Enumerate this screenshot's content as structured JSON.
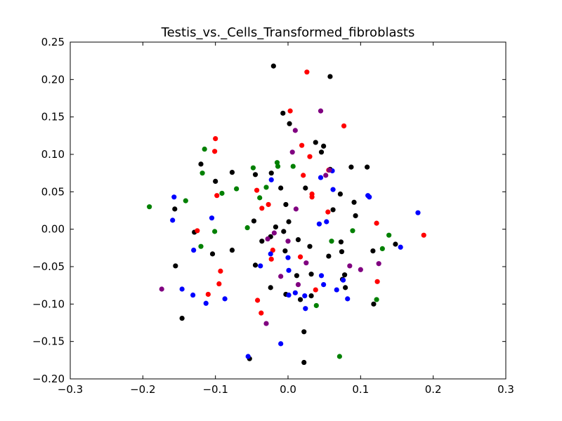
{
  "chart_data": {
    "type": "scatter",
    "title": "Testis_vs._Cells_Transformed_fibroblasts",
    "xlabel": "",
    "ylabel": "",
    "xlim": [
      -0.3,
      0.3
    ],
    "ylim": [
      -0.2,
      0.25
    ],
    "xticks": [
      -0.3,
      -0.2,
      -0.1,
      0.0,
      0.1,
      0.2,
      0.3
    ],
    "xtick_labels": [
      "−0.3",
      "−0.2",
      "−0.1",
      "0.0",
      "0.1",
      "0.2",
      "0.3"
    ],
    "yticks": [
      -0.2,
      -0.15,
      -0.1,
      -0.05,
      0.0,
      0.05,
      0.1,
      0.15,
      0.2,
      0.25
    ],
    "ytick_labels": [
      "−0.20",
      "−0.15",
      "−0.10",
      "−0.05",
      "0.00",
      "0.05",
      "0.10",
      "0.15",
      "0.20",
      "0.25"
    ],
    "grid": false,
    "legend": "none",
    "series": [
      {
        "color": "#000000",
        "points": [
          [
            -0.02,
            0.218
          ],
          [
            0.058,
            0.204
          ],
          [
            -0.007,
            0.155
          ],
          [
            0.002,
            0.141
          ],
          [
            0.038,
            0.116
          ],
          [
            0.049,
            0.111
          ],
          [
            0.046,
            0.103
          ],
          [
            -0.12,
            0.087
          ],
          [
            0.109,
            0.083
          ],
          [
            0.087,
            0.083
          ],
          [
            0.058,
            0.08
          ],
          [
            -0.077,
            0.076
          ],
          [
            -0.023,
            0.075
          ],
          [
            -0.045,
            0.073
          ],
          [
            -0.1,
            0.064
          ],
          [
            0.024,
            0.055
          ],
          [
            -0.01,
            0.055
          ],
          [
            0.072,
            0.047
          ],
          [
            0.091,
            0.036
          ],
          [
            -0.156,
            0.027
          ],
          [
            0.062,
            0.026
          ],
          [
            -0.003,
            0.033
          ],
          [
            0.093,
            0.018
          ],
          [
            -0.047,
            0.011
          ],
          [
            0.001,
            0.01
          ],
          [
            -0.129,
            -0.004
          ],
          [
            -0.017,
            0.003
          ],
          [
            -0.006,
            -0.003
          ],
          [
            -0.024,
            -0.01
          ],
          [
            0.014,
            -0.014
          ],
          [
            -0.036,
            -0.016
          ],
          [
            0.03,
            -0.023
          ],
          [
            0.073,
            -0.017
          ],
          [
            -0.077,
            -0.028
          ],
          [
            0.117,
            -0.029
          ],
          [
            -0.004,
            -0.029
          ],
          [
            -0.104,
            -0.033
          ],
          [
            0.074,
            -0.03
          ],
          [
            0.056,
            -0.036
          ],
          [
            -0.155,
            -0.049
          ],
          [
            -0.045,
            -0.048
          ],
          [
            0.032,
            -0.06
          ],
          [
            0.012,
            -0.062
          ],
          [
            0.078,
            -0.061
          ],
          [
            0.075,
            -0.067
          ],
          [
            -0.024,
            -0.078
          ],
          [
            0.079,
            -0.078
          ],
          [
            0.148,
            -0.02
          ],
          [
            0.118,
            -0.1
          ],
          [
            -0.003,
            -0.087
          ],
          [
            0.032,
            -0.089
          ],
          [
            0.017,
            -0.094
          ],
          [
            -0.146,
            -0.119
          ],
          [
            0.022,
            -0.137
          ],
          [
            -0.053,
            -0.173
          ],
          [
            0.022,
            -0.178
          ]
        ]
      },
      {
        "color": "#ff0000",
        "points": [
          [
            0.026,
            0.21
          ],
          [
            0.003,
            0.158
          ],
          [
            0.077,
            0.138
          ],
          [
            -0.1,
            0.121
          ],
          [
            0.019,
            0.112
          ],
          [
            -0.101,
            0.104
          ],
          [
            0.03,
            0.097
          ],
          [
            0.056,
            0.079
          ],
          [
            0.021,
            0.072
          ],
          [
            -0.043,
            0.052
          ],
          [
            0.033,
            0.047
          ],
          [
            -0.098,
            0.045
          ],
          [
            0.033,
            0.043
          ],
          [
            -0.027,
            0.033
          ],
          [
            -0.036,
            0.028
          ],
          [
            0.055,
            0.023
          ],
          [
            0.122,
            0.008
          ],
          [
            -0.125,
            -0.002
          ],
          [
            0.187,
            -0.008
          ],
          [
            -0.021,
            -0.028
          ],
          [
            0.017,
            -0.037
          ],
          [
            -0.023,
            -0.04
          ],
          [
            -0.093,
            -0.056
          ],
          [
            0.038,
            -0.081
          ],
          [
            -0.095,
            -0.073
          ],
          [
            0.123,
            -0.07
          ],
          [
            -0.11,
            -0.087
          ],
          [
            -0.042,
            -0.095
          ],
          [
            -0.037,
            -0.112
          ]
        ]
      },
      {
        "color": "#0000ff",
        "points": [
          [
            0.061,
            0.078
          ],
          [
            0.045,
            0.069
          ],
          [
            -0.023,
            0.066
          ],
          [
            0.062,
            0.053
          ],
          [
            -0.157,
            0.043
          ],
          [
            0.11,
            0.045
          ],
          [
            0.112,
            0.043
          ],
          [
            0.179,
            0.022
          ],
          [
            -0.105,
            0.015
          ],
          [
            -0.159,
            0.012
          ],
          [
            0.053,
            0.01
          ],
          [
            0.043,
            0.007
          ],
          [
            -0.13,
            -0.028
          ],
          [
            0.155,
            -0.024
          ],
          [
            -0.024,
            -0.033
          ],
          [
            0.0,
            -0.038
          ],
          [
            -0.038,
            -0.049
          ],
          [
            0.001,
            -0.055
          ],
          [
            0.046,
            -0.062
          ],
          [
            0.049,
            -0.074
          ],
          [
            0.076,
            -0.068
          ],
          [
            0.067,
            -0.081
          ],
          [
            -0.146,
            -0.08
          ],
          [
            0.01,
            -0.085
          ],
          [
            0.001,
            -0.088
          ],
          [
            0.023,
            -0.089
          ],
          [
            0.082,
            -0.093
          ],
          [
            -0.131,
            -0.088
          ],
          [
            -0.087,
            -0.093
          ],
          [
            -0.113,
            -0.099
          ],
          [
            0.024,
            -0.106
          ],
          [
            -0.01,
            -0.153
          ],
          [
            -0.055,
            -0.17
          ]
        ]
      },
      {
        "color": "#008000",
        "points": [
          [
            -0.115,
            0.107
          ],
          [
            -0.015,
            0.089
          ],
          [
            0.007,
            0.084
          ],
          [
            -0.048,
            0.082
          ],
          [
            -0.014,
            0.084
          ],
          [
            -0.118,
            0.075
          ],
          [
            -0.091,
            0.048
          ],
          [
            -0.071,
            0.054
          ],
          [
            -0.03,
            0.056
          ],
          [
            -0.039,
            0.042
          ],
          [
            -0.141,
            0.038
          ],
          [
            -0.191,
            0.03
          ],
          [
            -0.056,
            0.002
          ],
          [
            -0.101,
            -0.003
          ],
          [
            0.089,
            -0.002
          ],
          [
            0.139,
            -0.008
          ],
          [
            0.06,
            -0.016
          ],
          [
            -0.12,
            -0.023
          ],
          [
            0.13,
            -0.026
          ],
          [
            0.122,
            -0.094
          ],
          [
            0.039,
            -0.102
          ],
          [
            0.071,
            -0.17
          ]
        ]
      },
      {
        "color": "#800080",
        "points": [
          [
            0.045,
            0.158
          ],
          [
            0.01,
            0.132
          ],
          [
            0.006,
            0.103
          ],
          [
            0.057,
            0.079
          ],
          [
            0.052,
            0.072
          ],
          [
            0.011,
            0.027
          ],
          [
            -0.019,
            -0.005
          ],
          [
            -0.028,
            -0.013
          ],
          [
            0.0,
            -0.016
          ],
          [
            0.025,
            -0.045
          ],
          [
            0.125,
            -0.046
          ],
          [
            0.085,
            -0.049
          ],
          [
            0.1,
            -0.054
          ],
          [
            -0.01,
            -0.063
          ],
          [
            0.014,
            -0.074
          ],
          [
            -0.174,
            -0.08
          ],
          [
            -0.03,
            -0.126
          ]
        ]
      }
    ]
  }
}
